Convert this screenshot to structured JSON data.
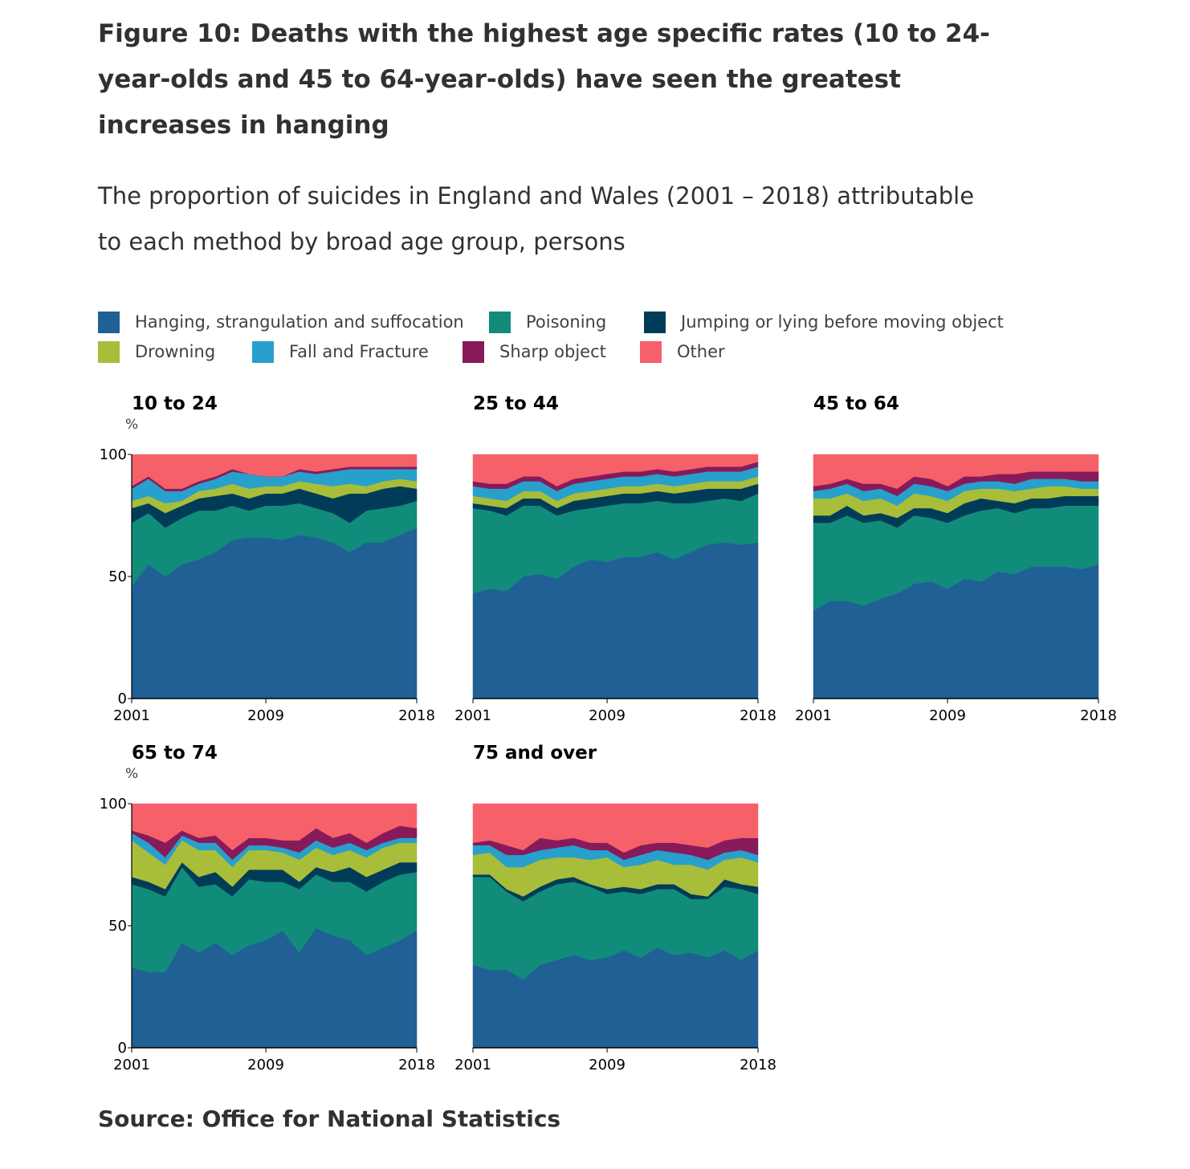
{
  "title": "Figure 10: Deaths with the highest age specific rates (10 to 24-year-olds and 45 to 64-year-olds) have seen the greatest increases in hanging",
  "subtitle": "The proportion of suicides in England and Wales (2001 – 2018) attributable to each method by broad age group, persons",
  "source": "Source: Office for National Statistics",
  "legend": [
    {
      "label": "Hanging, strangulation and suffocation",
      "color": "#206095"
    },
    {
      "label": "Poisoning",
      "color": "#118c7b"
    },
    {
      "label": "Jumping or lying before moving object",
      "color": "#003c57"
    },
    {
      "label": "Drowning",
      "color": "#a8bd3a"
    },
    {
      "label": "Fall and Fracture",
      "color": "#27a0cc"
    },
    {
      "label": "Sharp object",
      "color": "#871a5b"
    },
    {
      "label": "Other",
      "color": "#f66068"
    }
  ],
  "chart_data": [
    {
      "type": "area",
      "title": "10 to 24",
      "ylabel": "%",
      "ylim": [
        0,
        100
      ],
      "yticks": [
        "0",
        "50",
        "100"
      ],
      "xticks": [
        "2001",
        "2009",
        "2018"
      ],
      "x": [
        2001,
        2002,
        2003,
        2004,
        2005,
        2006,
        2007,
        2008,
        2009,
        2010,
        2011,
        2012,
        2013,
        2014,
        2015,
        2016,
        2017,
        2018
      ],
      "series": [
        {
          "name": "Hanging, strangulation and suffocation",
          "values": [
            46,
            55,
            50,
            55,
            57,
            60,
            65,
            66,
            66,
            65,
            67,
            66,
            64,
            60,
            64,
            64,
            67,
            70
          ]
        },
        {
          "name": "Poisoning",
          "values": [
            26,
            21,
            20,
            19,
            20,
            17,
            14,
            11,
            13,
            14,
            13,
            12,
            12,
            12,
            13,
            14,
            12,
            11
          ]
        },
        {
          "name": "Jumping or lying before moving object",
          "values": [
            6,
            4,
            6,
            5,
            5,
            6,
            5,
            5,
            5,
            5,
            6,
            6,
            6,
            12,
            7,
            8,
            8,
            5
          ]
        },
        {
          "name": "Drowning",
          "values": [
            3,
            3,
            4,
            2,
            3,
            3,
            4,
            4,
            3,
            3,
            3,
            4,
            5,
            4,
            3,
            3,
            3,
            3
          ]
        },
        {
          "name": "Fall and Fracture",
          "values": [
            5,
            7,
            5,
            4,
            3,
            4,
            5,
            6,
            4,
            4,
            4,
            4,
            6,
            6,
            7,
            5,
            4,
            5
          ]
        },
        {
          "name": "Sharp object",
          "values": [
            1,
            1,
            1,
            1,
            1,
            1,
            1,
            0,
            0,
            0,
            1,
            1,
            1,
            1,
            1,
            1,
            1,
            1
          ]
        },
        {
          "name": "Other",
          "values": [
            13,
            9,
            14,
            14,
            11,
            9,
            6,
            8,
            9,
            9,
            6,
            7,
            6,
            5,
            5,
            5,
            5,
            5
          ]
        }
      ]
    },
    {
      "type": "area",
      "title": "25 to 44",
      "ylim": [
        0,
        100
      ],
      "xticks": [
        "2001",
        "2009",
        "2018"
      ],
      "x": [
        2001,
        2002,
        2003,
        2004,
        2005,
        2006,
        2007,
        2008,
        2009,
        2010,
        2011,
        2012,
        2013,
        2014,
        2015,
        2016,
        2017,
        2018
      ],
      "series": [
        {
          "name": "Hanging, strangulation and suffocation",
          "values": [
            43,
            45,
            44,
            50,
            51,
            49,
            54,
            57,
            56,
            58,
            58,
            60,
            57,
            60,
            63,
            64,
            63,
            64
          ]
        },
        {
          "name": "Poisoning",
          "values": [
            35,
            32,
            31,
            29,
            28,
            26,
            23,
            21,
            23,
            22,
            22,
            21,
            23,
            20,
            18,
            18,
            18,
            20
          ]
        },
        {
          "name": "Jumping or lying before moving object",
          "values": [
            2,
            2,
            3,
            3,
            3,
            3,
            4,
            4,
            4,
            4,
            4,
            4,
            4,
            5,
            5,
            4,
            5,
            4
          ]
        },
        {
          "name": "Drowning",
          "values": [
            3,
            3,
            3,
            3,
            3,
            3,
            3,
            3,
            3,
            3,
            3,
            3,
            3,
            3,
            3,
            3,
            3,
            3
          ]
        },
        {
          "name": "Fall and Fracture",
          "values": [
            4,
            4,
            5,
            4,
            4,
            4,
            4,
            4,
            4,
            4,
            4,
            4,
            4,
            4,
            4,
            4,
            4,
            4
          ]
        },
        {
          "name": "Sharp object",
          "values": [
            2,
            2,
            2,
            2,
            2,
            2,
            2,
            2,
            2,
            2,
            2,
            2,
            2,
            2,
            2,
            2,
            2,
            2
          ]
        },
        {
          "name": "Other",
          "values": [
            11,
            12,
            12,
            9,
            9,
            13,
            10,
            9,
            8,
            7,
            7,
            6,
            7,
            6,
            5,
            5,
            5,
            3
          ]
        }
      ]
    },
    {
      "type": "area",
      "title": "45 to 64",
      "ylim": [
        0,
        100
      ],
      "xticks": [
        "2001",
        "2009",
        "2018"
      ],
      "x": [
        2001,
        2002,
        2003,
        2004,
        2005,
        2006,
        2007,
        2008,
        2009,
        2010,
        2011,
        2012,
        2013,
        2014,
        2015,
        2016,
        2017,
        2018
      ],
      "series": [
        {
          "name": "Hanging, strangulation and suffocation",
          "values": [
            36,
            40,
            40,
            38,
            41,
            43,
            47,
            48,
            45,
            49,
            48,
            52,
            51,
            54,
            54,
            54,
            53,
            55
          ]
        },
        {
          "name": "Poisoning",
          "values": [
            36,
            32,
            35,
            34,
            32,
            27,
            28,
            26,
            27,
            26,
            29,
            26,
            25,
            24,
            24,
            25,
            26,
            24
          ]
        },
        {
          "name": "Jumping or lying before moving object",
          "values": [
            3,
            3,
            4,
            3,
            3,
            4,
            3,
            4,
            4,
            5,
            5,
            3,
            4,
            4,
            4,
            4,
            4,
            4
          ]
        },
        {
          "name": "Drowning",
          "values": [
            7,
            7,
            5,
            6,
            6,
            5,
            6,
            5,
            5,
            5,
            4,
            5,
            5,
            4,
            5,
            4,
            3,
            3
          ]
        },
        {
          "name": "Fall and Fracture",
          "values": [
            3,
            4,
            4,
            4,
            4,
            4,
            4,
            4,
            4,
            3,
            3,
            3,
            3,
            4,
            3,
            3,
            3,
            3
          ]
        },
        {
          "name": "Sharp object",
          "values": [
            2,
            2,
            2,
            3,
            2,
            3,
            3,
            3,
            2,
            3,
            2,
            3,
            4,
            3,
            3,
            3,
            4,
            4
          ]
        },
        {
          "name": "Other",
          "values": [
            13,
            12,
            10,
            12,
            12,
            14,
            9,
            10,
            13,
            9,
            9,
            8,
            8,
            7,
            7,
            7,
            7,
            7
          ]
        }
      ]
    },
    {
      "type": "area",
      "title": "65 to 74",
      "ylabel": "%",
      "ylim": [
        0,
        100
      ],
      "yticks": [
        "0",
        "50",
        "100"
      ],
      "xticks": [
        "2001",
        "2009",
        "2018"
      ],
      "x": [
        2001,
        2002,
        2003,
        2004,
        2005,
        2006,
        2007,
        2008,
        2009,
        2010,
        2011,
        2012,
        2013,
        2014,
        2015,
        2016,
        2017,
        2018
      ],
      "series": [
        {
          "name": "Hanging, strangulation and suffocation",
          "values": [
            33,
            31,
            31,
            43,
            39,
            43,
            38,
            42,
            44,
            48,
            39,
            49,
            46,
            44,
            38,
            41,
            44,
            48
          ]
        },
        {
          "name": "Poisoning",
          "values": [
            34,
            34,
            31,
            31,
            27,
            24,
            24,
            27,
            24,
            20,
            26,
            22,
            22,
            24,
            26,
            27,
            27,
            24
          ]
        },
        {
          "name": "Jumping or lying before moving object",
          "values": [
            3,
            3,
            3,
            2,
            4,
            5,
            4,
            4,
            5,
            5,
            3,
            3,
            4,
            6,
            6,
            5,
            5,
            4
          ]
        },
        {
          "name": "Drowning",
          "values": [
            15,
            12,
            10,
            9,
            11,
            9,
            8,
            8,
            8,
            7,
            9,
            8,
            7,
            7,
            8,
            9,
            8,
            8
          ]
        },
        {
          "name": "Fall and Fracture",
          "values": [
            3,
            4,
            3,
            2,
            3,
            3,
            3,
            2,
            2,
            2,
            3,
            3,
            3,
            3,
            3,
            2,
            2,
            2
          ]
        },
        {
          "name": "Sharp object",
          "values": [
            1,
            3,
            6,
            2,
            2,
            3,
            4,
            3,
            3,
            3,
            5,
            5,
            4,
            4,
            3,
            4,
            5,
            4
          ]
        },
        {
          "name": "Other",
          "values": [
            11,
            13,
            16,
            11,
            14,
            13,
            19,
            14,
            14,
            15,
            15,
            10,
            14,
            12,
            16,
            12,
            9,
            10
          ]
        }
      ]
    },
    {
      "type": "area",
      "title": "75 and over",
      "ylim": [
        0,
        100
      ],
      "xticks": [
        "2001",
        "2009",
        "2018"
      ],
      "x": [
        2001,
        2002,
        2003,
        2004,
        2005,
        2006,
        2007,
        2008,
        2009,
        2010,
        2011,
        2012,
        2013,
        2014,
        2015,
        2016,
        2017,
        2018
      ],
      "series": [
        {
          "name": "Hanging, strangulation and suffocation",
          "values": [
            34,
            32,
            32,
            28,
            34,
            36,
            38,
            36,
            37,
            40,
            37,
            41,
            38,
            39,
            37,
            40,
            36,
            40
          ]
        },
        {
          "name": "Poisoning",
          "values": [
            36,
            38,
            32,
            32,
            30,
            31,
            30,
            30,
            26,
            24,
            26,
            24,
            27,
            22,
            24,
            26,
            29,
            23
          ]
        },
        {
          "name": "Jumping or lying before moving object",
          "values": [
            1,
            1,
            1,
            2,
            2,
            2,
            2,
            1,
            2,
            2,
            2,
            2,
            2,
            2,
            1,
            3,
            2,
            3
          ]
        },
        {
          "name": "Drowning",
          "values": [
            8,
            9,
            9,
            12,
            11,
            9,
            8,
            10,
            13,
            8,
            10,
            10,
            8,
            12,
            11,
            8,
            11,
            10
          ]
        },
        {
          "name": "Fall and Fracture",
          "values": [
            4,
            3,
            5,
            5,
            4,
            4,
            5,
            4,
            3,
            3,
            4,
            4,
            5,
            4,
            4,
            3,
            3,
            3
          ]
        },
        {
          "name": "Sharp object",
          "values": [
            1,
            2,
            4,
            2,
            5,
            3,
            3,
            3,
            3,
            3,
            4,
            3,
            4,
            4,
            5,
            5,
            5,
            7
          ]
        },
        {
          "name": "Other",
          "values": [
            16,
            15,
            17,
            19,
            14,
            15,
            14,
            16,
            16,
            20,
            17,
            16,
            16,
            17,
            18,
            15,
            14,
            14
          ]
        }
      ]
    }
  ]
}
